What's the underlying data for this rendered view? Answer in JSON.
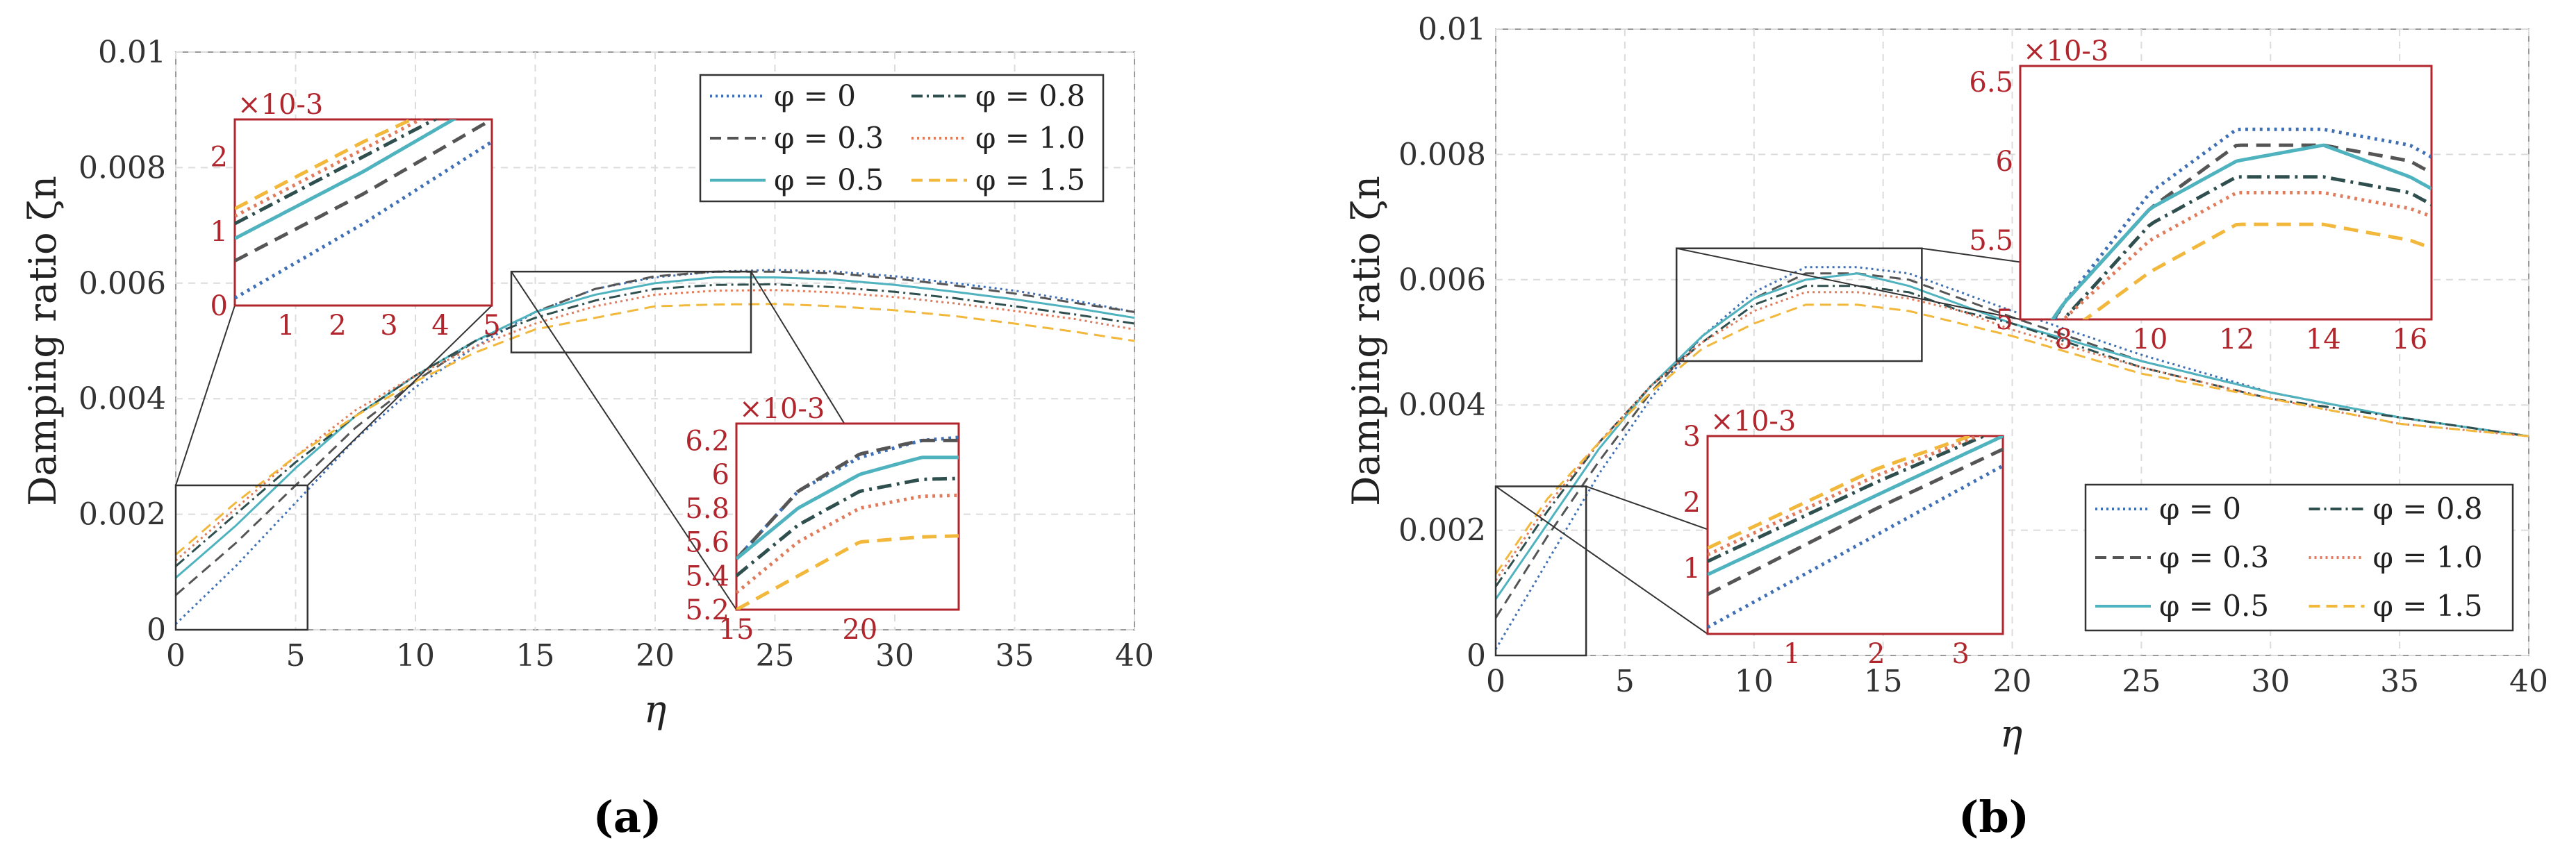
{
  "chart_data": [
    {
      "type": "line",
      "panel_label": "(a)",
      "xlabel": "η",
      "ylabel": "Damping ratio ζn",
      "xlim": [
        0,
        40
      ],
      "ylim": [
        0,
        0.01
      ],
      "xticks": [
        "0",
        "5",
        "10",
        "15",
        "20",
        "25",
        "30",
        "35",
        "40"
      ],
      "yticks": [
        "0",
        "0.002",
        "0.004",
        "0.006",
        "0.008",
        "0.01"
      ],
      "grid": true,
      "legend": {
        "placement": "top-right",
        "columns": 2
      },
      "series": [
        {
          "name": "φ = 0",
          "color": "#3f6fb5",
          "style": "dotted",
          "x": [
            0,
            2.5,
            5,
            7.5,
            10,
            12.5,
            15,
            17.5,
            20,
            22.5,
            25,
            27.5,
            30,
            32.5,
            35,
            37.5,
            40
          ],
          "y": [
            0.0001,
            0.0011,
            0.0022,
            0.0033,
            0.0042,
            0.0049,
            0.0055,
            0.0059,
            0.0061,
            0.0062,
            0.00623,
            0.0062,
            0.00612,
            0.006,
            0.00587,
            0.0057,
            0.0055
          ]
        },
        {
          "name": "φ = 0.3",
          "color": "#555555",
          "style": "dashed",
          "x": [
            0,
            2.5,
            5,
            7.5,
            10,
            12.5,
            15,
            17.5,
            20,
            22.5,
            25,
            27.5,
            30,
            32.5,
            35,
            37.5,
            40
          ],
          "y": [
            0.0006,
            0.0015,
            0.0025,
            0.0035,
            0.0043,
            0.005,
            0.0055,
            0.0059,
            0.00612,
            0.0062,
            0.0062,
            0.00617,
            0.00608,
            0.00596,
            0.00582,
            0.00566,
            0.0055
          ]
        },
        {
          "name": "φ = 0.5",
          "color": "#4fb3bf",
          "style": "solid",
          "x": [
            0,
            2.5,
            5,
            7.5,
            10,
            12.5,
            15,
            17.5,
            20,
            22.5,
            25,
            27.5,
            30,
            32.5,
            35,
            37.5,
            40
          ],
          "y": [
            0.0009,
            0.0018,
            0.0028,
            0.0037,
            0.0044,
            0.005,
            0.0055,
            0.0058,
            0.006,
            0.0061,
            0.0061,
            0.00606,
            0.00597,
            0.00585,
            0.00572,
            0.00557,
            0.0054
          ]
        },
        {
          "name": "φ = 0.8",
          "color": "#2f4f4f",
          "style": "dashdot",
          "x": [
            0,
            2.5,
            5,
            7.5,
            10,
            12.5,
            15,
            17.5,
            20,
            22.5,
            25,
            27.5,
            30,
            32.5,
            35,
            37.5,
            40
          ],
          "y": [
            0.0011,
            0.002,
            0.0029,
            0.0037,
            0.0044,
            0.005,
            0.0054,
            0.0057,
            0.0059,
            0.00597,
            0.00598,
            0.00593,
            0.00585,
            0.00574,
            0.0056,
            0.00546,
            0.0053
          ]
        },
        {
          "name": "φ = 1.0",
          "color": "#e07b5b",
          "style": "dotted",
          "x": [
            0,
            2.5,
            5,
            7.5,
            10,
            12.5,
            15,
            17.5,
            20,
            22.5,
            25,
            27.5,
            30,
            32.5,
            35,
            37.5,
            40
          ],
          "y": [
            0.0012,
            0.0021,
            0.003,
            0.0038,
            0.0044,
            0.0049,
            0.0053,
            0.0056,
            0.0058,
            0.00587,
            0.00588,
            0.00584,
            0.00576,
            0.00565,
            0.00552,
            0.00538,
            0.0052
          ]
        },
        {
          "name": "φ = 1.5",
          "color": "#f2b83b",
          "style": "dashed",
          "x": [
            0,
            2.5,
            5,
            7.5,
            10,
            12.5,
            15,
            17.5,
            20,
            22.5,
            25,
            27.5,
            30,
            32.5,
            35,
            37.5,
            40
          ],
          "y": [
            0.0013,
            0.0022,
            0.003,
            0.0037,
            0.0043,
            0.0048,
            0.0052,
            0.0054,
            0.0056,
            0.00563,
            0.00564,
            0.0056,
            0.00553,
            0.00543,
            0.0053,
            0.00516,
            0.005
          ]
        }
      ],
      "insets": [
        {
          "name": "low-eta-zoom",
          "scale_label": "×10-3",
          "xlim": [
            0,
            5
          ],
          "ylim": [
            0,
            2.5
          ],
          "xticks": [
            "1",
            "2",
            "3",
            "4",
            "5"
          ],
          "yticks": [
            "0",
            "1",
            "2"
          ],
          "zoom_region": {
            "xlim": [
              0,
              5.5
            ],
            "ylim": [
              0,
              0.0025
            ]
          }
        },
        {
          "name": "peak-zoom",
          "scale_label": "×10-3",
          "xlim": [
            15,
            24
          ],
          "ylim": [
            5.2,
            6.3
          ],
          "xticks": [
            "15",
            "20"
          ],
          "yticks": [
            "5.2",
            "5.4",
            "5.6",
            "5.8",
            "6",
            "6.2"
          ],
          "zoom_region": {
            "xlim": [
              14,
              24
            ],
            "ylim": [
              0.0048,
              0.0062
            ]
          }
        }
      ]
    },
    {
      "type": "line",
      "panel_label": "(b)",
      "xlabel": "η",
      "ylabel": "Damping ratio ζn",
      "xlim": [
        0,
        40
      ],
      "ylim": [
        0,
        0.01
      ],
      "xticks": [
        "0",
        "5",
        "10",
        "15",
        "20",
        "25",
        "30",
        "35",
        "40"
      ],
      "yticks": [
        "0",
        "0.002",
        "0.004",
        "0.006",
        "0.008",
        "0.01"
      ],
      "grid": true,
      "legend": {
        "placement": "bottom-right",
        "columns": 2
      },
      "series": [
        {
          "name": "φ = 0",
          "color": "#3f6fb5",
          "style": "dotted",
          "x": [
            0,
            2,
            4,
            6,
            8,
            10,
            12,
            14,
            16,
            18,
            20,
            25,
            30,
            35,
            40
          ],
          "y": [
            0.0001,
            0.0015,
            0.0029,
            0.0041,
            0.0051,
            0.0058,
            0.0062,
            0.0062,
            0.0061,
            0.0058,
            0.0055,
            0.0048,
            0.0042,
            0.0038,
            0.0035
          ]
        },
        {
          "name": "φ = 0.3",
          "color": "#555555",
          "style": "dashed",
          "x": [
            0,
            2,
            4,
            6,
            8,
            10,
            12,
            14,
            16,
            18,
            20,
            25,
            30,
            35,
            40
          ],
          "y": [
            0.0006,
            0.0019,
            0.0031,
            0.0042,
            0.0051,
            0.0057,
            0.0061,
            0.0061,
            0.006,
            0.0057,
            0.0054,
            0.0047,
            0.0042,
            0.0038,
            0.0035
          ]
        },
        {
          "name": "φ = 0.5",
          "color": "#4fb3bf",
          "style": "solid",
          "x": [
            0,
            2,
            4,
            6,
            8,
            10,
            12,
            14,
            16,
            18,
            20,
            25,
            30,
            35,
            40
          ],
          "y": [
            0.0009,
            0.0021,
            0.0033,
            0.0043,
            0.0051,
            0.0057,
            0.006,
            0.0061,
            0.0059,
            0.0056,
            0.0053,
            0.0047,
            0.0042,
            0.0038,
            0.0035
          ]
        },
        {
          "name": "φ = 0.8",
          "color": "#2f4f4f",
          "style": "dashdot",
          "x": [
            0,
            2,
            4,
            6,
            8,
            10,
            12,
            14,
            16,
            18,
            20,
            25,
            30,
            35,
            40
          ],
          "y": [
            0.0011,
            0.0023,
            0.0034,
            0.0043,
            0.005,
            0.0056,
            0.0059,
            0.0059,
            0.0058,
            0.0055,
            0.0053,
            0.0046,
            0.0041,
            0.0038,
            0.0035
          ]
        },
        {
          "name": "φ = 1.0",
          "color": "#e07b5b",
          "style": "dotted",
          "x": [
            0,
            2,
            4,
            6,
            8,
            10,
            12,
            14,
            16,
            18,
            20,
            25,
            30,
            35,
            40
          ],
          "y": [
            0.0012,
            0.0024,
            0.0034,
            0.0043,
            0.005,
            0.0055,
            0.0058,
            0.0058,
            0.0057,
            0.0055,
            0.0052,
            0.0046,
            0.0041,
            0.0037,
            0.0035
          ]
        },
        {
          "name": "φ = 1.5",
          "color": "#f2b83b",
          "style": "dashed",
          "x": [
            0,
            2,
            4,
            6,
            8,
            10,
            12,
            14,
            16,
            18,
            20,
            25,
            30,
            35,
            40
          ],
          "y": [
            0.0013,
            0.0025,
            0.0034,
            0.0042,
            0.0049,
            0.0053,
            0.0056,
            0.0056,
            0.0055,
            0.0053,
            0.0051,
            0.0045,
            0.0041,
            0.0037,
            0.0035
          ]
        }
      ],
      "insets": [
        {
          "name": "peak-zoom",
          "scale_label": "×10-3",
          "xlim": [
            7,
            16.5
          ],
          "ylim": [
            5,
            6.6
          ],
          "xticks": [
            "8",
            "10",
            "12",
            "14",
            "16"
          ],
          "yticks": [
            "5",
            "5.5",
            "6",
            "6.5"
          ],
          "zoom_region": {
            "xlim": [
              7,
              16.5
            ],
            "ylim": [
              0.0047,
              0.0065
            ]
          }
        },
        {
          "name": "low-eta-zoom",
          "scale_label": "×10-3",
          "xlim": [
            0,
            3.5
          ],
          "ylim": [
            0,
            3
          ],
          "xticks": [
            "1",
            "2",
            "3"
          ],
          "yticks": [
            "1",
            "2",
            "3"
          ],
          "zoom_region": {
            "xlim": [
              0,
              3.5
            ],
            "ylim": [
              0,
              0.0027
            ]
          }
        }
      ]
    }
  ]
}
